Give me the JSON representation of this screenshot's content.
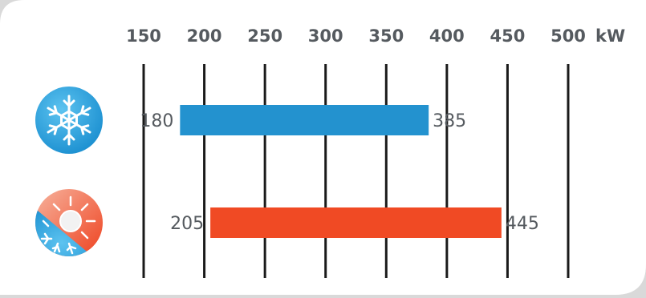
{
  "chart_data": {
    "type": "bar",
    "orientation": "horizontal",
    "unit": "kW",
    "xlim": [
      150,
      500
    ],
    "ticks": [
      150,
      200,
      250,
      300,
      350,
      400,
      450,
      500
    ],
    "ranges": [
      {
        "icon": "snowflake-icon",
        "start": 180,
        "end": 385,
        "color": "#2392cf"
      },
      {
        "icon": "sun-snowflake-icon",
        "start": 205,
        "end": 445,
        "color": "#f04a24"
      }
    ]
  },
  "colors": {
    "background": "#d9d9d9",
    "card": "#ffffff",
    "gridline": "#1a1a1a",
    "text": "#555a5f",
    "cooling": "#2392cf",
    "heating": "#f04a24"
  }
}
